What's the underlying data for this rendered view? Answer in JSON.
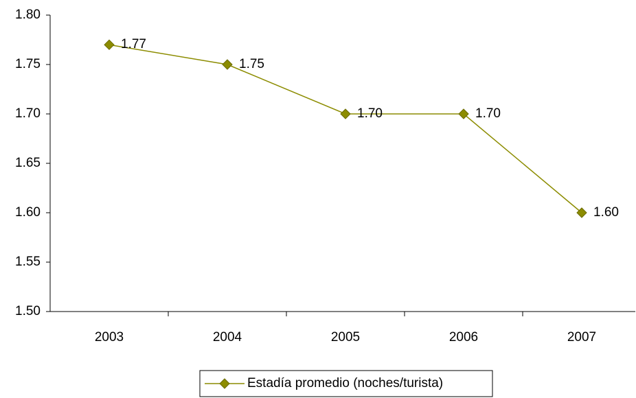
{
  "chart_data": {
    "type": "line",
    "categories": [
      "2003",
      "2004",
      "2005",
      "2006",
      "2007"
    ],
    "series": [
      {
        "name": "Estadía promedio (noches/turista)",
        "color": "#8c8c00",
        "values": [
          1.77,
          1.75,
          1.7,
          1.7,
          1.6
        ],
        "value_labels": [
          "1.77",
          "1.75",
          "1.70",
          "1.70",
          "1.60"
        ]
      }
    ],
    "ylim": [
      1.5,
      1.8
    ],
    "yticks": [
      {
        "value": 1.5,
        "label": "1.50"
      },
      {
        "value": 1.55,
        "label": "1.55"
      },
      {
        "value": 1.6,
        "label": "1.60"
      },
      {
        "value": 1.65,
        "label": "1.65"
      },
      {
        "value": 1.7,
        "label": "1.70"
      },
      {
        "value": 1.75,
        "label": "1.75"
      },
      {
        "value": 1.8,
        "label": "1.80"
      }
    ],
    "grid": false,
    "legend": "bottom"
  }
}
